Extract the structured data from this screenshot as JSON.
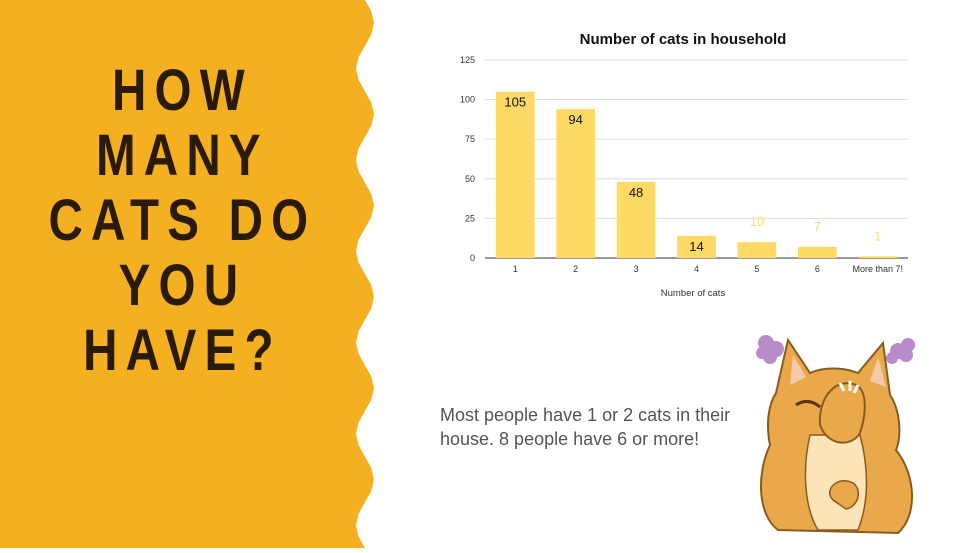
{
  "headline_lines": [
    "HOW",
    "MANY",
    "CATS DO",
    "YOU",
    "HAVE?"
  ],
  "caption": "Most people have 1 or 2 cats in their house.  8 people have 6 or more!",
  "colors": {
    "panel": "#f5b021",
    "bar": "#ffd966",
    "headline": "#2a1a08"
  },
  "chart_data": {
    "type": "bar",
    "title": "Number of cats in household",
    "xlabel": "Number of cats",
    "ylabel": "",
    "categories": [
      "1",
      "2",
      "3",
      "4",
      "5",
      "6",
      "More than 7!"
    ],
    "values": [
      105,
      94,
      48,
      14,
      10,
      7,
      1
    ],
    "yticks": [
      "0",
      "25",
      "50",
      "75",
      "100",
      "125"
    ],
    "ylim": [
      0,
      125
    ],
    "grid": true,
    "legend": "none"
  }
}
